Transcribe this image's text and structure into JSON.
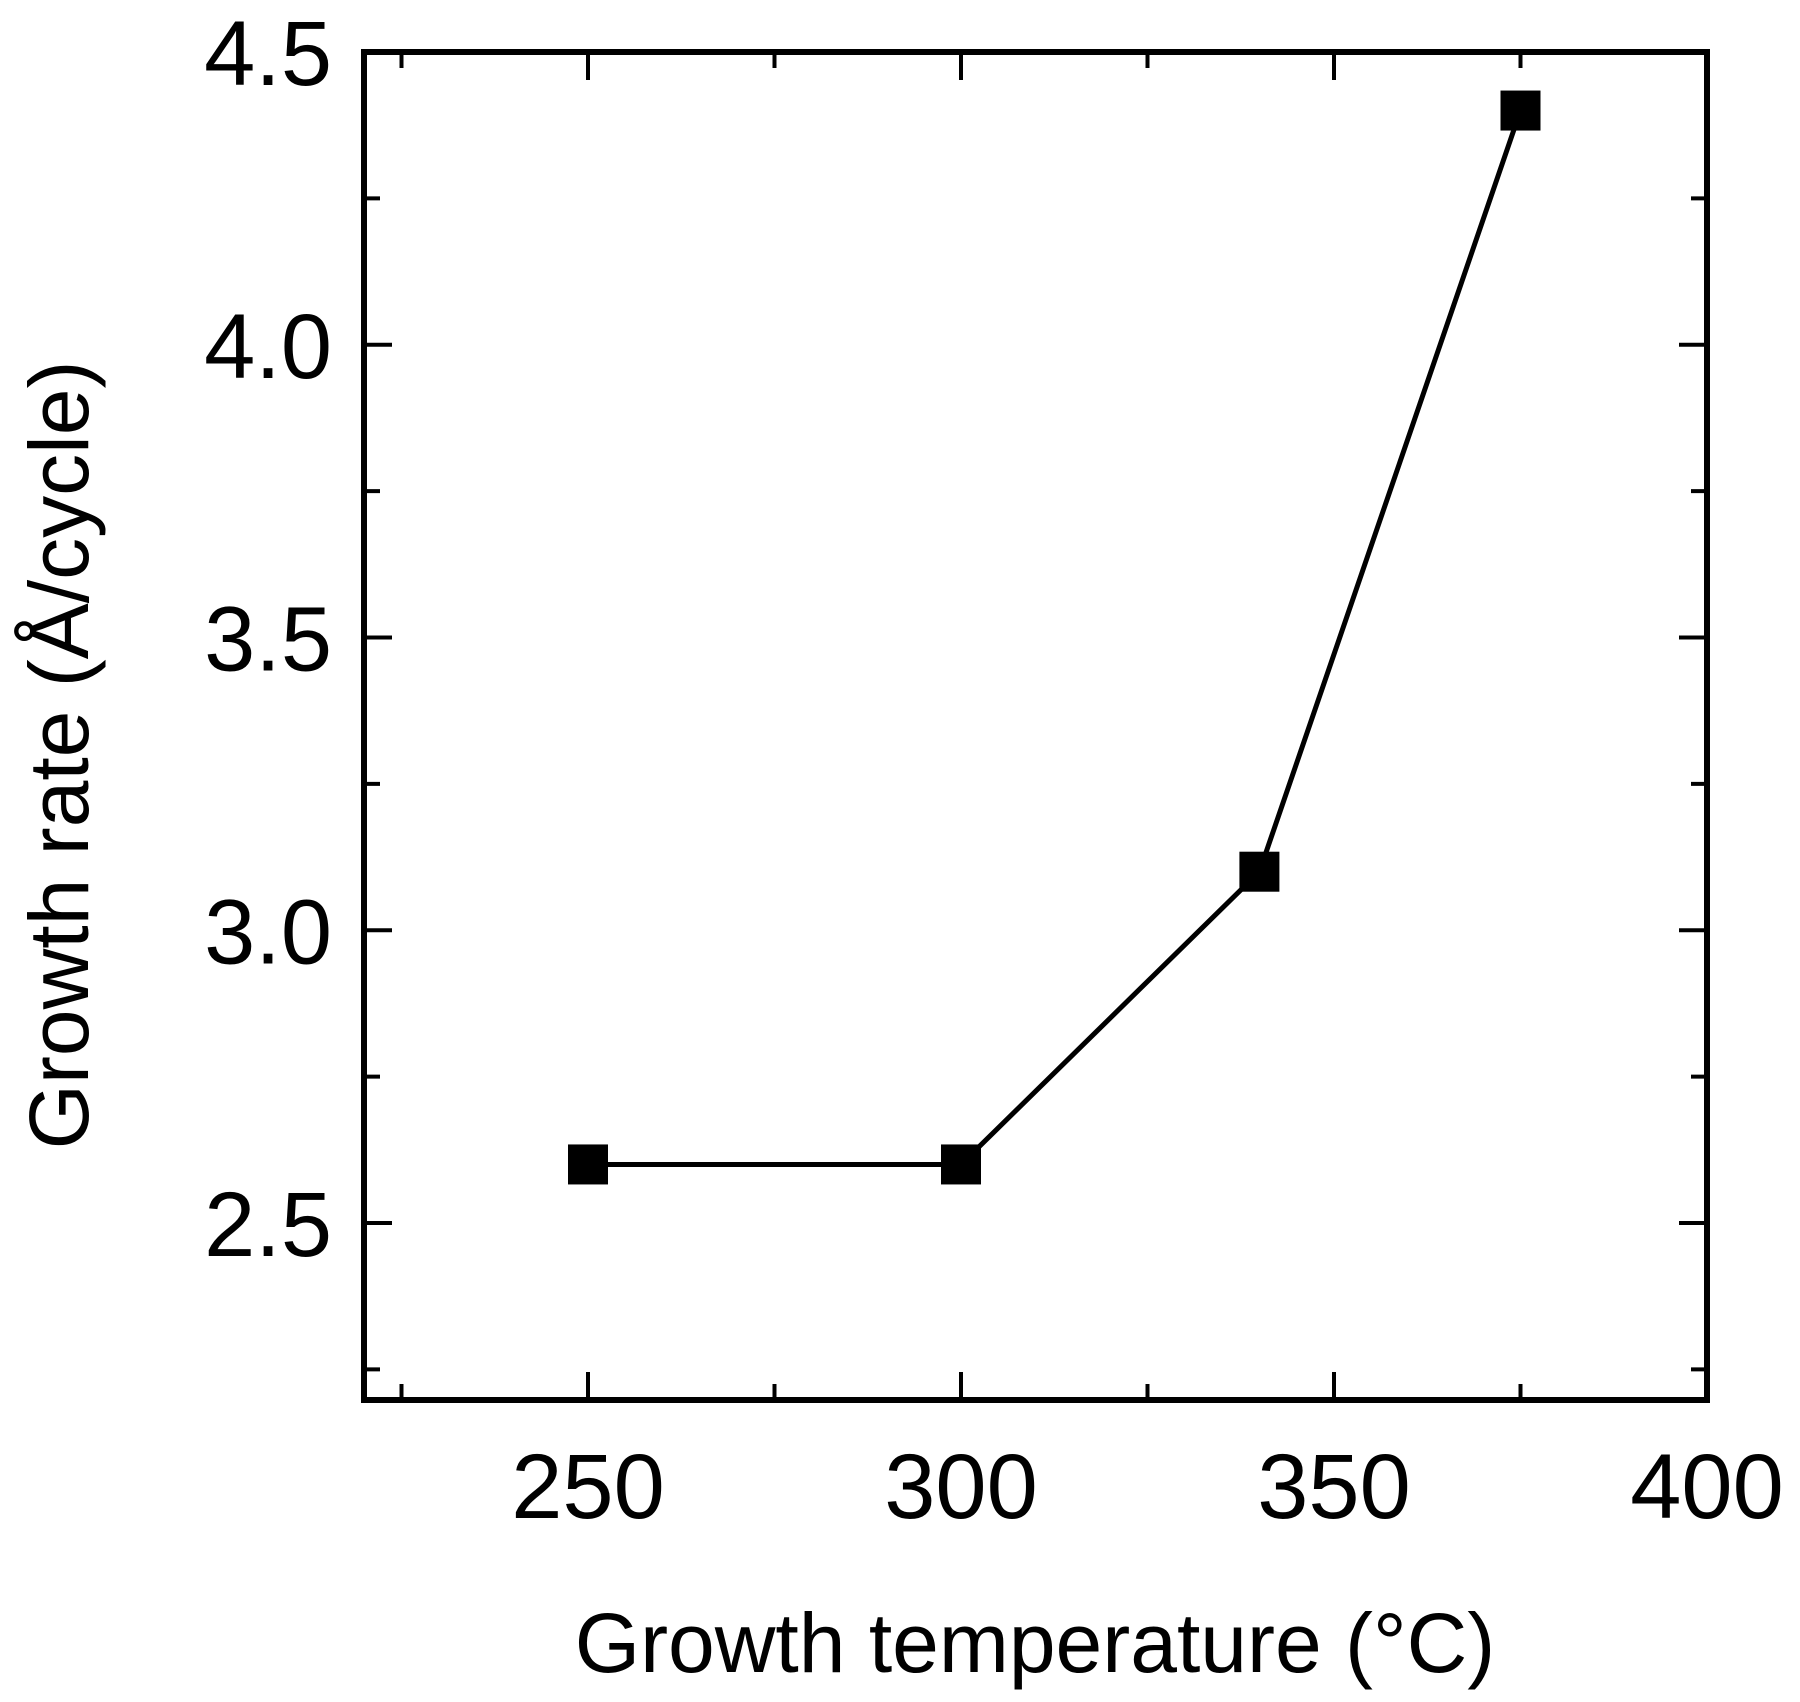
{
  "chart_data": {
    "type": "line",
    "title": "",
    "xlabel": "Growth temperature (°C)",
    "ylabel": "Growth rate (Å/cycle)",
    "xlim": [
      220,
      400
    ],
    "ylim": [
      2.2,
      4.5
    ],
    "x_ticks": [
      250,
      300,
      350,
      400
    ],
    "x_tick_labels": [
      "250",
      "300",
      "350",
      "400"
    ],
    "y_ticks": [
      2.5,
      3.0,
      3.5,
      4.0,
      4.5
    ],
    "y_tick_labels": [
      "2.5",
      "3.0",
      "3.5",
      "4.0",
      "4.5"
    ],
    "grid": false,
    "legend": null,
    "series": [
      {
        "name": "Growth rate",
        "marker": "filled-square",
        "color": "#000000",
        "x": [
          250,
          300,
          340,
          375
        ],
        "values": [
          2.6,
          2.6,
          3.1,
          4.4
        ]
      }
    ]
  }
}
